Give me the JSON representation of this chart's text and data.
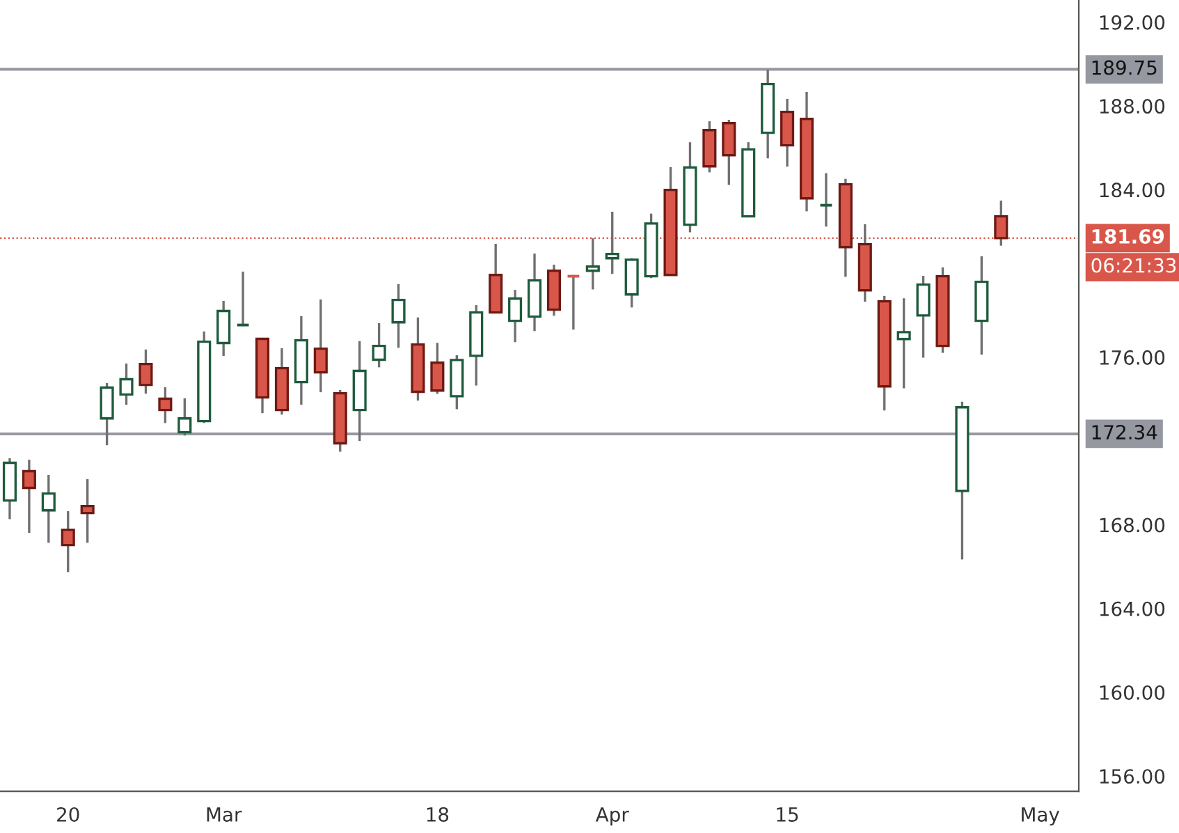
{
  "chart_data": {
    "type": "candlestick",
    "categories": [
      null,
      null,
      null,
      "20",
      null,
      null,
      null,
      null,
      null,
      null,
      null,
      "Mar",
      null,
      null,
      null,
      null,
      null,
      null,
      null,
      null,
      null,
      null,
      "18",
      null,
      null,
      null,
      null,
      null,
      null,
      null,
      null,
      "Apr",
      null,
      null,
      null,
      null,
      null,
      null,
      null,
      null,
      "15",
      null,
      null,
      null,
      null,
      null,
      null,
      null,
      null,
      null,
      null,
      null,
      null,
      "May"
    ],
    "ohlc": [
      [
        169.16,
        171.18,
        168.27,
        170.96
      ],
      [
        170.56,
        171.11,
        167.61,
        169.76
      ],
      [
        168.69,
        170.38,
        167.14,
        169.49
      ],
      [
        167.76,
        168.65,
        165.74,
        167.03
      ],
      [
        168.89,
        170.18,
        167.14,
        168.56
      ],
      [
        173.08,
        174.77,
        171.8,
        174.55
      ],
      [
        174.22,
        175.7,
        173.73,
        174.95
      ],
      [
        175.68,
        176.37,
        174.26,
        174.68
      ],
      [
        174.02,
        174.57,
        172.86,
        173.48
      ],
      [
        172.42,
        174.04,
        172.26,
        173.08
      ],
      [
        172.95,
        177.23,
        172.86,
        176.74
      ],
      [
        176.68,
        178.69,
        176.06,
        178.21
      ],
      [
        177.54,
        180.09,
        177.54,
        177.54
      ],
      [
        176.88,
        176.88,
        173.33,
        174.08
      ],
      [
        175.48,
        176.43,
        173.26,
        173.48
      ],
      [
        174.81,
        177.96,
        173.73,
        176.81
      ],
      [
        176.41,
        178.76,
        174.33,
        175.28
      ],
      [
        174.28,
        174.44,
        171.49,
        171.89
      ],
      [
        173.48,
        176.77,
        172.0,
        175.35
      ],
      [
        175.88,
        177.63,
        175.52,
        176.54
      ],
      [
        177.67,
        179.49,
        176.45,
        178.74
      ],
      [
        176.61,
        177.9,
        173.93,
        174.35
      ],
      [
        175.74,
        176.69,
        174.25,
        174.41
      ],
      [
        174.14,
        176.1,
        173.52,
        175.87
      ],
      [
        176.07,
        178.49,
        174.65,
        178.14
      ],
      [
        179.93,
        181.42,
        178.14,
        178.14
      ],
      [
        177.74,
        179.22,
        176.72,
        178.8
      ],
      [
        177.94,
        180.95,
        177.25,
        179.67
      ],
      [
        180.13,
        180.42,
        177.98,
        178.27
      ],
      [
        179.87,
        179.93,
        177.32,
        179.87
      ],
      [
        180.13,
        181.68,
        179.24,
        180.33
      ],
      [
        180.73,
        182.95,
        179.98,
        180.93
      ],
      [
        179.0,
        180.73,
        178.38,
        180.66
      ],
      [
        179.87,
        182.86,
        179.78,
        182.39
      ],
      [
        183.99,
        185.08,
        179.93,
        179.93
      ],
      [
        182.33,
        186.27,
        181.97,
        185.06
      ],
      [
        186.85,
        187.27,
        184.83,
        185.12
      ],
      [
        187.18,
        187.34,
        184.23,
        185.65
      ],
      [
        182.73,
        186.27,
        182.73,
        185.92
      ],
      [
        186.72,
        189.73,
        185.5,
        189.05
      ],
      [
        187.72,
        188.34,
        185.1,
        186.12
      ],
      [
        187.38,
        188.67,
        182.97,
        183.59
      ],
      [
        183.26,
        184.79,
        182.24,
        183.26
      ],
      [
        184.26,
        184.52,
        179.84,
        181.26
      ],
      [
        181.4,
        182.35,
        178.65,
        179.2
      ],
      [
        178.67,
        178.93,
        173.46,
        174.61
      ],
      [
        176.87,
        178.82,
        174.52,
        177.2
      ],
      [
        178.0,
        179.89,
        175.98,
        179.47
      ],
      [
        179.87,
        180.29,
        176.21,
        176.54
      ],
      [
        169.62,
        173.88,
        166.34,
        173.61
      ],
      [
        177.74,
        180.82,
        176.12,
        179.6
      ],
      [
        182.73,
        183.48,
        181.33,
        181.69
      ],
      null,
      null
    ],
    "colors": [
      "#1e5b3c",
      "#d9574a",
      "#1e5b3c",
      "#d9574a",
      "#d9574a",
      "#1e5b3c",
      "#1e5b3c",
      "#d9574a",
      "#d9574a",
      "#1e5b3c",
      "#1e5b3c",
      "#1e5b3c",
      "#1e5b3c",
      "#d9574a",
      "#d9574a",
      "#1e5b3c",
      "#d9574a",
      "#d9574a",
      "#1e5b3c",
      "#1e5b3c",
      "#1e5b3c",
      "#d9574a",
      "#d9574a",
      "#1e5b3c",
      "#1e5b3c",
      "#d9574a",
      "#1e5b3c",
      "#1e5b3c",
      "#d9574a",
      "#d9574a",
      "#1e5b3c",
      "#1e5b3c",
      "#1e5b3c",
      "#1e5b3c",
      "#d9574a",
      "#1e5b3c",
      "#d9574a",
      "#d9574a",
      "#1e5b3c",
      "#1e5b3c",
      "#d9574a",
      "#d9574a",
      "#1e5b3c",
      "#d9574a",
      "#d9574a",
      "#d9574a",
      "#1e5b3c",
      "#1e5b3c",
      "#d9574a",
      "#1e5b3c",
      "#1e5b3c",
      "#d9574a",
      null,
      null
    ],
    "ylim": [
      155.27,
      193.06
    ],
    "yticks": [
      {
        "value": 156,
        "label": "156.00"
      },
      {
        "value": 160,
        "label": "160.00"
      },
      {
        "value": 164,
        "label": "164.00"
      },
      {
        "value": 168,
        "label": "168.00"
      },
      {
        "value": 176,
        "label": "176.00"
      },
      {
        "value": 184,
        "label": "184.00"
      },
      {
        "value": 188,
        "label": "188.00"
      },
      {
        "value": 192,
        "label": "192.00"
      }
    ],
    "ref_lines": [
      {
        "axis": "y",
        "value": 189.75,
        "label": "189.75",
        "color": "#9598a1",
        "line_style": "solid"
      },
      {
        "axis": "y",
        "value": 172.34,
        "label": "172.34",
        "color": "#9598a1",
        "line_style": "solid"
      },
      {
        "axis": "y",
        "value": 181.69,
        "label": "181.69",
        "color": "#d9574a",
        "line_style": "dotted"
      }
    ],
    "annotations": [
      "06:21:33"
    ],
    "grid": false
  }
}
